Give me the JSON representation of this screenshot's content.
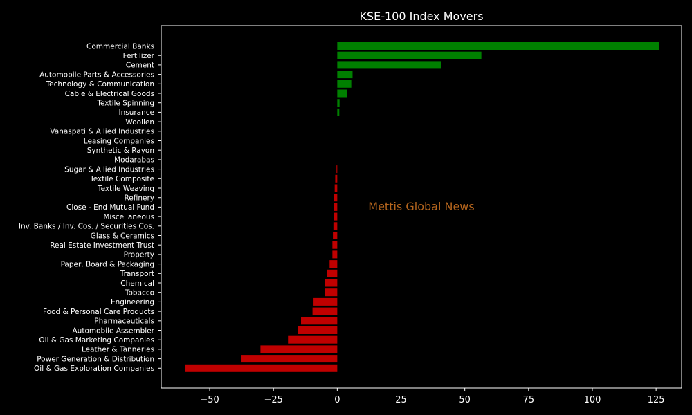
{
  "chart_data": {
    "type": "bar",
    "orientation": "horizontal",
    "title": "KSE-100 Index Movers",
    "xlabel": "",
    "ylabel": "",
    "xlim": [
      -69,
      135
    ],
    "x_ticks": [
      -50,
      -25,
      0,
      25,
      50,
      75,
      100,
      125
    ],
    "x_tick_labels": [
      "−50",
      "−25",
      "0",
      "25",
      "50",
      "75",
      "100",
      "125"
    ],
    "grid": false,
    "legend": "none",
    "annotation": "Mettis Global News",
    "colors": {
      "background": "#000000",
      "frame": "#ffffff",
      "text": "#ffffff",
      "positive": "#008000",
      "negative": "#c00000",
      "annotation": "#b5651d"
    },
    "categories": [
      "Commercial Banks",
      "Fertilizer",
      "Cement",
      "Automobile Parts & Accessories",
      "Technology & Communication",
      "Cable & Electrical Goods",
      "Textile Spinning",
      "Insurance",
      "Woollen",
      "Vanaspati & Allied Industries",
      "Leasing Companies",
      "Synthetic & Rayon",
      "Modarabas",
      "Sugar & Allied Industries",
      "Textile Composite",
      "Textile Weaving",
      "Refinery",
      "Close - End Mutual Fund",
      "Miscellaneous",
      "Inv. Banks / Inv. Cos. / Securities Cos.",
      "Glass & Ceramics",
      "Real Estate Investment Trust",
      "Property",
      "Paper, Board & Packaging",
      "Transport",
      "Chemical",
      "Tobacco",
      "Engineering",
      "Food & Personal Care Products",
      "Pharmaceuticals",
      "Automobile Assembler",
      "Oil & Gas Marketing Companies",
      "Leather & Tanneries",
      "Power Generation & Distribution",
      "Oil & Gas Exploration Companies"
    ],
    "values": [
      126.2,
      56.5,
      40.7,
      6.0,
      5.5,
      3.8,
      0.9,
      0.8,
      0,
      0,
      0,
      0,
      0,
      -0.3,
      -0.8,
      -1.0,
      -1.3,
      -1.3,
      -1.4,
      -1.5,
      -1.7,
      -1.9,
      -1.9,
      -3.0,
      -4.1,
      -4.9,
      -4.9,
      -9.3,
      -9.7,
      -14.2,
      -15.5,
      -19.3,
      -30.1,
      -37.8,
      -59.5
    ]
  }
}
